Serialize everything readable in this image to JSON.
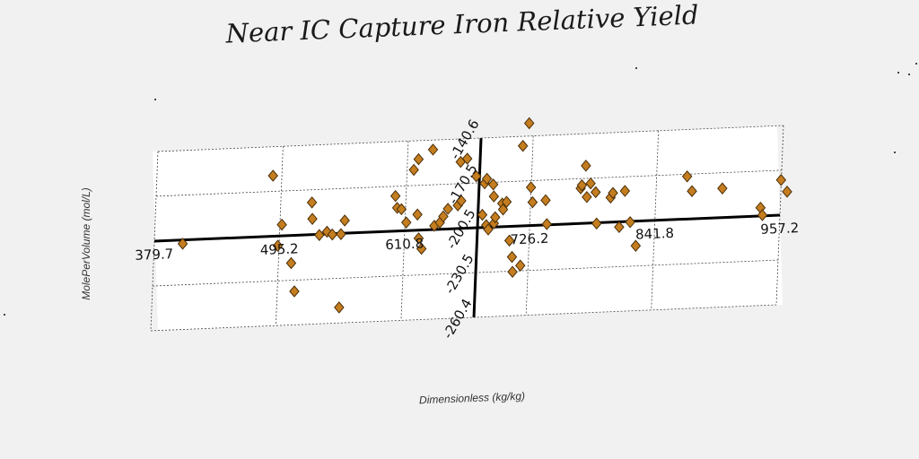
{
  "chart_data": {
    "type": "scatter",
    "title": "Near IC Capture Iron Relative Yield",
    "xlabel": "Dimensionless (kg/kg)",
    "ylabel": "MolePerVolume (mol/L)",
    "xlim": [
      379.7,
      957.2
    ],
    "ylim": [
      -260.4,
      -140.6
    ],
    "x_ticks": [
      379.7,
      495.2,
      610.8,
      726.2,
      841.8,
      957.2
    ],
    "x_tick_labels": [
      "379.7",
      "495.2",
      "610.8",
      "726.2",
      "841.8",
      "957.2"
    ],
    "y_ticks": [
      -140.6,
      -170.5,
      -200.5,
      -230.5,
      -260.4
    ],
    "y_tick_labels": [
      "-140.6",
      "-170.5",
      "-200.5",
      "-230.5",
      "-260.4"
    ],
    "grid": true,
    "marker": "diamond",
    "color": "#c47d1f",
    "series": [
      {
        "points": [
          [
            406,
            -203
          ],
          [
            487,
            -160
          ],
          [
            494,
            -207
          ],
          [
            497,
            -193
          ],
          [
            507,
            -219
          ],
          [
            511,
            -238
          ],
          [
            524,
            -179
          ],
          [
            525,
            -190
          ],
          [
            532,
            -201
          ],
          [
            539,
            -199
          ],
          [
            544,
            -201
          ],
          [
            552,
            -201
          ],
          [
            553,
            -250
          ],
          [
            555,
            -192
          ],
          [
            601,
            -177
          ],
          [
            603,
            -185
          ],
          [
            607,
            -186
          ],
          [
            612,
            -195
          ],
          [
            617,
            -160
          ],
          [
            621,
            -153
          ],
          [
            622,
            -190
          ],
          [
            624,
            -206
          ],
          [
            627,
            -213
          ],
          [
            634,
            -147
          ],
          [
            638,
            -198
          ],
          [
            643,
            -196
          ],
          [
            646,
            -192
          ],
          [
            650,
            -187
          ],
          [
            659,
            -185
          ],
          [
            660,
            -156
          ],
          [
            662,
            -182
          ],
          [
            666,
            -154
          ],
          [
            675,
            -166
          ],
          [
            682,
            -192
          ],
          [
            683,
            -171
          ],
          [
            685,
            -168
          ],
          [
            686,
            -199
          ],
          [
            688,
            -202
          ],
          [
            691,
            -172
          ],
          [
            692,
            -180
          ],
          [
            693,
            -198
          ],
          [
            694,
            -194
          ],
          [
            700,
            -185
          ],
          [
            701,
            -189
          ],
          [
            704,
            -184
          ],
          [
            708,
            -210
          ],
          [
            711,
            -221
          ],
          [
            712,
            -231
          ],
          [
            717,
            -147
          ],
          [
            719,
            -227
          ],
          [
            722,
            -132
          ],
          [
            726,
            -175
          ],
          [
            728,
            -185
          ],
          [
            740,
            -184
          ],
          [
            742,
            -200
          ],
          [
            772,
            -177
          ],
          [
            773,
            -175
          ],
          [
            776,
            -162
          ],
          [
            778,
            -183
          ],
          [
            781,
            -174
          ],
          [
            786,
            -180
          ],
          [
            788,
            -201
          ],
          [
            800,
            -184
          ],
          [
            802,
            -181
          ],
          [
            809,
            -204
          ],
          [
            813,
            -180
          ],
          [
            819,
            -201
          ],
          [
            825,
            -217
          ],
          [
            870,
            -172
          ],
          [
            875,
            -182
          ],
          [
            903,
            -181
          ],
          [
            939,
            -195
          ],
          [
            941,
            -200
          ],
          [
            957,
            -177
          ],
          [
            963,
            -185
          ]
        ]
      }
    ]
  }
}
